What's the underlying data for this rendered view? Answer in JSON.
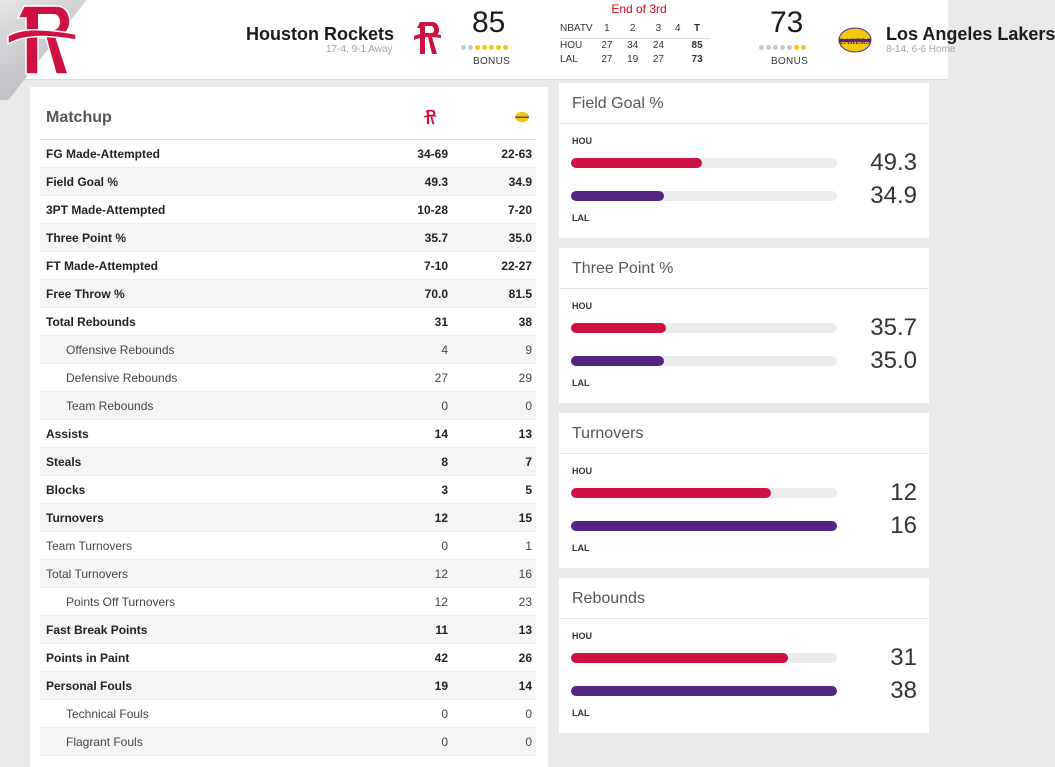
{
  "header": {
    "home": {
      "name": "Houston Rockets",
      "record": "17-4, 9-1 Away",
      "score": "85",
      "bonus": "BONUS",
      "timeouts_on": 5,
      "timeouts_total": 7
    },
    "away": {
      "name": "Los Angeles Lakers",
      "record": "8-14, 6-6 Home",
      "score": "73",
      "bonus": "BONUS",
      "timeouts_on": 2,
      "timeouts_total": 7
    },
    "status": "End of 3rd",
    "linescore": {
      "network": "NBATV",
      "periods": [
        "1",
        "2",
        "3",
        "4",
        "T"
      ],
      "rows": [
        {
          "team": "HOU",
          "q": [
            "27",
            "34",
            "24",
            "",
            "85"
          ]
        },
        {
          "team": "LAL",
          "q": [
            "27",
            "19",
            "27",
            "",
            "73"
          ]
        }
      ]
    }
  },
  "matchup": {
    "title": "Matchup",
    "rows": [
      {
        "label": "FG Made-Attempted",
        "hou": "34-69",
        "lal": "22-63",
        "style": "main"
      },
      {
        "label": "Field Goal %",
        "hou": "49.3",
        "lal": "34.9",
        "style": "main"
      },
      {
        "label": "3PT Made-Attempted",
        "hou": "10-28",
        "lal": "7-20",
        "style": "main"
      },
      {
        "label": "Three Point %",
        "hou": "35.7",
        "lal": "35.0",
        "style": "main"
      },
      {
        "label": "FT Made-Attempted",
        "hou": "7-10",
        "lal": "22-27",
        "style": "main"
      },
      {
        "label": "Free Throw %",
        "hou": "70.0",
        "lal": "81.5",
        "style": "main"
      },
      {
        "label": "Total Rebounds",
        "hou": "31",
        "lal": "38",
        "style": "main"
      },
      {
        "label": "Offensive Rebounds",
        "hou": "4",
        "lal": "9",
        "style": "sub"
      },
      {
        "label": "Defensive Rebounds",
        "hou": "27",
        "lal": "29",
        "style": "sub"
      },
      {
        "label": "Team Rebounds",
        "hou": "0",
        "lal": "0",
        "style": "sub"
      },
      {
        "label": "Assists",
        "hou": "14",
        "lal": "13",
        "style": "main"
      },
      {
        "label": "Steals",
        "hou": "8",
        "lal": "7",
        "style": "main"
      },
      {
        "label": "Blocks",
        "hou": "3",
        "lal": "5",
        "style": "main"
      },
      {
        "label": "Turnovers",
        "hou": "12",
        "lal": "15",
        "style": "main"
      },
      {
        "label": "Team Turnovers",
        "hou": "0",
        "lal": "1",
        "style": "norm"
      },
      {
        "label": "Total Turnovers",
        "hou": "12",
        "lal": "16",
        "style": "norm"
      },
      {
        "label": "Points Off Turnovers",
        "hou": "12",
        "lal": "23",
        "style": "sub"
      },
      {
        "label": "Fast Break Points",
        "hou": "11",
        "lal": "13",
        "style": "main"
      },
      {
        "label": "Points in Paint",
        "hou": "42",
        "lal": "26",
        "style": "main"
      },
      {
        "label": "Personal Fouls",
        "hou": "19",
        "lal": "14",
        "style": "main"
      },
      {
        "label": "Technical Fouls",
        "hou": "0",
        "lal": "0",
        "style": "sub"
      },
      {
        "label": "Flagrant Fouls",
        "hou": "0",
        "lal": "0",
        "style": "sub"
      }
    ]
  },
  "comparisons": [
    {
      "title": "Field Goal %",
      "hou_label": "HOU",
      "lal_label": "LAL",
      "hou": "49.3",
      "lal": "34.9",
      "hou_frac": 0.493,
      "lal_frac": 0.349
    },
    {
      "title": "Three Point %",
      "hou_label": "HOU",
      "lal_label": "LAL",
      "hou": "35.7",
      "lal": "35.0",
      "hou_frac": 0.357,
      "lal_frac": 0.35
    },
    {
      "title": "Turnovers",
      "hou_label": "HOU",
      "lal_label": "LAL",
      "hou": "12",
      "lal": "16",
      "hou_frac": 0.75,
      "lal_frac": 1.0
    },
    {
      "title": "Rebounds",
      "hou_label": "HOU",
      "lal_label": "LAL",
      "hou": "31",
      "lal": "38",
      "hou_frac": 0.816,
      "lal_frac": 1.0
    }
  ],
  "colors": {
    "hou": "#ce1141",
    "lal": "#552583",
    "bonus_on": "#f2c811",
    "status": "#d0021b"
  },
  "icons": {
    "home": "rockets-logo-icon",
    "away": "lakers-logo-icon"
  }
}
